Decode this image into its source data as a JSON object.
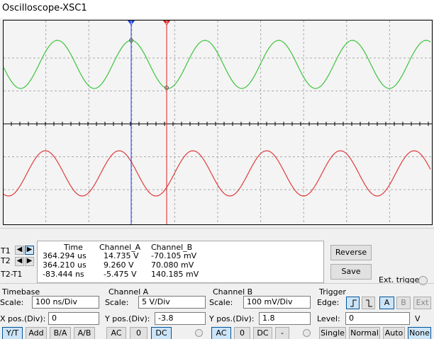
{
  "title": "Oscilloscope-XSC1",
  "screen": {
    "cursor_labels": [
      "1",
      "2"
    ]
  },
  "readout": {
    "row_labels": [
      "T1",
      "T2",
      "T2-T1"
    ],
    "headers": [
      "Time",
      "Channel_A",
      "Channel_B"
    ],
    "rows": [
      [
        "364.294 us",
        "14.735 V",
        "-70.105 mV"
      ],
      [
        "364.210 us",
        "9.260 V",
        "70.080 mV"
      ],
      [
        "-83.444 ns",
        "-5.475 V",
        "140.185 mV"
      ]
    ],
    "buttons": [
      "Reverse",
      "Save"
    ],
    "ext_trigger": "Ext. trigger"
  },
  "timebase": {
    "title": "Timebase",
    "scale_label": "Scale:",
    "scale": "100 ns/Div",
    "xpos_label": "X pos.(Div):",
    "xpos": "0",
    "modes": [
      "Y/T",
      "Add",
      "B/A",
      "A/B"
    ]
  },
  "channel_a": {
    "title": "Channel A",
    "scale_label": "Scale:",
    "scale": "5 V/Div",
    "ypos_label": "Y pos.(Div):",
    "ypos": "-3.8",
    "coupling": [
      "AC",
      "0",
      "DC"
    ]
  },
  "channel_b": {
    "title": "Channel B",
    "scale_label": "Scale:",
    "scale": "100 mV/Div",
    "ypos_label": "Y pos.(Div):",
    "ypos": "1.8",
    "coupling": [
      "AC",
      "0",
      "DC",
      "-"
    ]
  },
  "trigger": {
    "title": "Trigger",
    "edge_label": "Edge:",
    "sources": [
      "A",
      "B",
      "Ext"
    ],
    "level_label": "Level:",
    "level": "0",
    "level_unit": "V",
    "modes": [
      "Single",
      "Normal",
      "Auto",
      "None"
    ]
  }
}
